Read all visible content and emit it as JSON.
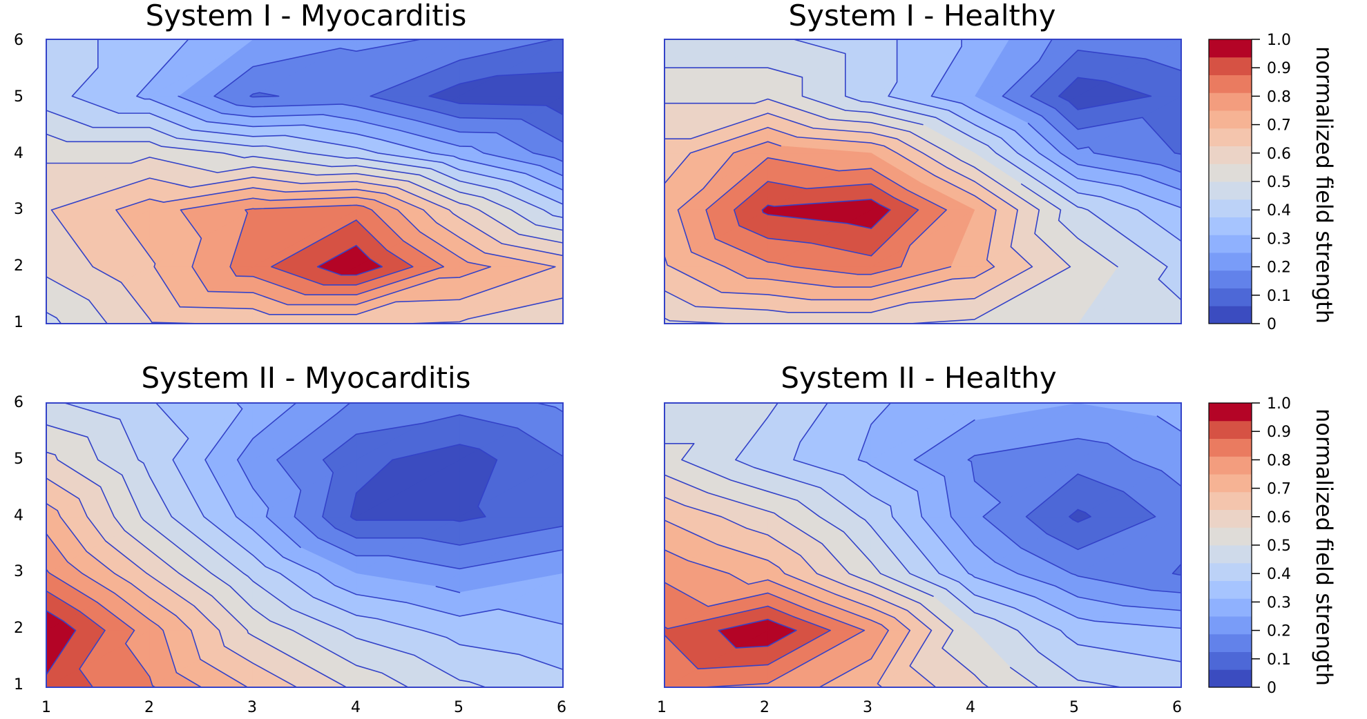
{
  "chart_data": [
    {
      "type": "heatmap",
      "title": "System I - Myocarditis",
      "x": [
        1,
        2,
        3,
        4,
        5,
        6
      ],
      "y": [
        1,
        2,
        3,
        4,
        5,
        6
      ],
      "xticks": [
        "1",
        "2",
        "3",
        "4",
        "5",
        "6"
      ],
      "yticks": [
        "1",
        "2",
        "3",
        "4",
        "5",
        "6"
      ],
      "show_xticks": false,
      "z": [
        [
          0.48,
          0.62,
          0.63,
          0.63,
          0.62,
          0.58
        ],
        [
          0.58,
          0.68,
          0.85,
          0.99,
          0.78,
          0.68
        ],
        [
          0.62,
          0.72,
          0.82,
          0.85,
          0.6,
          0.4
        ],
        [
          0.55,
          0.55,
          0.48,
          0.4,
          0.28,
          0.15
        ],
        [
          0.4,
          0.3,
          0.12,
          0.14,
          0.03,
          0.02
        ],
        [
          0.4,
          0.35,
          0.25,
          0.2,
          0.18,
          0.12
        ]
      ]
    },
    {
      "type": "heatmap",
      "title": "System I - Healthy",
      "x": [
        1,
        2,
        3,
        4,
        5,
        6
      ],
      "y": [
        1,
        2,
        3,
        4,
        5,
        6
      ],
      "xticks": [
        "1",
        "2",
        "3",
        "4",
        "5",
        "6"
      ],
      "yticks": [
        "1",
        "2",
        "3",
        "4",
        "5",
        "6"
      ],
      "show_xticks": false,
      "z": [
        [
          0.55,
          0.57,
          0.57,
          0.55,
          0.5,
          0.45
        ],
        [
          0.68,
          0.8,
          0.85,
          0.72,
          0.55,
          0.42
        ],
        [
          0.72,
          0.95,
          0.98,
          0.75,
          0.45,
          0.32
        ],
        [
          0.65,
          0.8,
          0.75,
          0.5,
          0.2,
          0.12
        ],
        [
          0.55,
          0.55,
          0.4,
          0.25,
          0.02,
          0.08
        ],
        [
          0.45,
          0.45,
          0.4,
          0.3,
          0.15,
          0.18
        ]
      ]
    },
    {
      "type": "heatmap",
      "title": "System II - Myocarditis",
      "x": [
        1,
        2,
        3,
        4,
        5,
        6
      ],
      "y": [
        1,
        2,
        3,
        4,
        5,
        6
      ],
      "xticks": [
        "1",
        "2",
        "3",
        "4",
        "5",
        "6"
      ],
      "yticks": [
        "1",
        "2",
        "3",
        "4",
        "5",
        "6"
      ],
      "show_xticks": true,
      "z": [
        [
          0.92,
          0.82,
          0.68,
          0.55,
          0.45,
          0.4
        ],
        [
          1.0,
          0.78,
          0.55,
          0.42,
          0.35,
          0.32
        ],
        [
          0.82,
          0.62,
          0.42,
          0.25,
          0.2,
          0.25
        ],
        [
          0.72,
          0.48,
          0.28,
          0.05,
          0.05,
          0.1
        ],
        [
          0.58,
          0.42,
          0.22,
          0.08,
          0.03,
          0.12
        ],
        [
          0.45,
          0.38,
          0.3,
          0.18,
          0.15,
          0.2
        ]
      ]
    },
    {
      "type": "heatmap",
      "title": "System II - Healthy",
      "x": [
        1,
        2,
        3,
        4,
        5,
        6
      ],
      "y": [
        1,
        2,
        3,
        4,
        5,
        6
      ],
      "xticks": [
        "1",
        "2",
        "3",
        "4",
        "5",
        "6"
      ],
      "yticks": [
        "1",
        "2",
        "3",
        "4",
        "5",
        "6"
      ],
      "show_xticks": true,
      "z": [
        [
          0.82,
          0.8,
          0.7,
          0.58,
          0.45,
          0.42
        ],
        [
          0.88,
          0.99,
          0.8,
          0.5,
          0.35,
          0.32
        ],
        [
          0.8,
          0.72,
          0.52,
          0.3,
          0.18,
          0.12
        ],
        [
          0.68,
          0.58,
          0.42,
          0.2,
          0.05,
          0.15
        ],
        [
          0.52,
          0.4,
          0.3,
          0.18,
          0.15,
          0.22
        ],
        [
          0.45,
          0.45,
          0.32,
          0.28,
          0.25,
          0.28
        ]
      ]
    }
  ],
  "colorbar": {
    "label": "normalized field strength",
    "ticks": [
      "0",
      "0.1",
      "0.2",
      "0.3",
      "0.4",
      "0.5",
      "0.6",
      "0.7",
      "0.8",
      "0.9",
      "1.0"
    ],
    "levels": [
      0.0,
      0.0625,
      0.125,
      0.1875,
      0.25,
      0.3125,
      0.375,
      0.4375,
      0.5,
      0.5625,
      0.625,
      0.6875,
      0.75,
      0.8125,
      0.875,
      0.9375,
      1.0
    ],
    "colors": [
      "#3b4cc0",
      "#4d68d7",
      "#6282ea",
      "#799cf8",
      "#8fb1fe",
      "#a6c4fe",
      "#bcd2f7",
      "#cfdaea",
      "#dfdcd8",
      "#ebd3c6",
      "#f4c5ad",
      "#f6b394",
      "#f39d7e",
      "#ea7b60",
      "#d65244",
      "#b40426"
    ],
    "line_color": "#3342c8"
  }
}
